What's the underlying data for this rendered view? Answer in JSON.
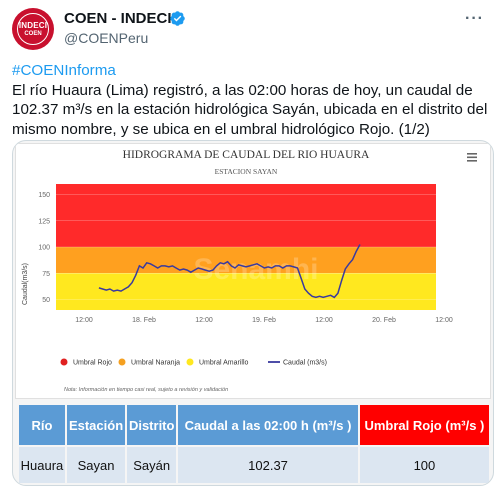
{
  "account": {
    "name": "COEN - INDECI",
    "handle": "@COENPeru",
    "avatar_text_top": "INDECI",
    "avatar_text_bottom": "COEN"
  },
  "tweet": {
    "hashtag": "#COENInforma",
    "body": "El río Huaura (Lima) registró, a las 02:00 horas de hoy, un caudal de 102.37 m³/s en la estación hidrológica Sayán, ubicada en el distrito del mismo nombre, y se ubica en el umbral hidrológico Rojo. (1/2)"
  },
  "chart_data": {
    "type": "line",
    "title": "HIDROGRAMA DE CAUDAL DEL RIO HUAURA",
    "subtitle": "ESTACION SAYAN",
    "ylabel": "Caudal(m3/s)",
    "ylim": [
      40,
      160
    ],
    "yticks": [
      50,
      75,
      100,
      125,
      150
    ],
    "xticks": [
      "12:00",
      "18. Feb",
      "12:00",
      "19. Feb",
      "12:00",
      "20. Feb",
      "12:00"
    ],
    "bands": [
      {
        "name": "Umbral Rojo",
        "from": 100,
        "to": 160,
        "color": "#ff2a2a"
      },
      {
        "name": "Umbral Naranja",
        "from": 75,
        "to": 100,
        "color": "#ffa01f"
      },
      {
        "name": "Umbral Amarillo",
        "from": 40,
        "to": 75,
        "color": "#ffe81f"
      }
    ],
    "series": [
      {
        "name": "Caudal (m3/s)",
        "color": "#3a3a9e",
        "x": [
          0,
          0.03,
          0.06,
          0.09,
          0.12,
          0.15,
          0.18,
          0.21,
          0.24,
          0.27,
          0.3,
          0.33,
          0.36,
          0.39,
          0.42,
          0.45,
          0.48,
          0.51,
          0.54,
          0.57,
          0.6,
          0.63,
          0.66,
          0.69,
          0.72,
          0.75,
          0.78,
          0.81,
          0.84,
          0.87,
          0.9,
          0.93,
          0.96,
          0.99,
          1.02,
          1.05,
          1.08,
          1.11,
          1.14,
          1.17,
          1.2,
          1.23,
          1.26,
          1.29,
          1.32,
          1.35,
          1.38,
          1.41,
          1.44,
          1.47,
          1.5,
          1.53,
          1.56,
          1.59,
          1.62,
          1.65,
          1.68,
          1.71,
          1.74,
          1.77,
          1.8,
          1.83,
          1.86,
          1.89,
          1.92,
          1.95,
          1.98,
          2.01,
          2.04,
          2.07,
          2.1,
          2.13
        ],
        "values": [
          61,
          60,
          59,
          60,
          58,
          59,
          58,
          60,
          62,
          66,
          73,
          82,
          80,
          85,
          84,
          82,
          80,
          82,
          82,
          81,
          82,
          80,
          78,
          79,
          78,
          76,
          78,
          80,
          79,
          78,
          77,
          78,
          82,
          85,
          84,
          86,
          82,
          80,
          83,
          82,
          81,
          82,
          83,
          84,
          82,
          80,
          81,
          80,
          82,
          82,
          80,
          82,
          82,
          81,
          80,
          70,
          60,
          56,
          53,
          52,
          53,
          52,
          53,
          54,
          52,
          56,
          68,
          79,
          84,
          88,
          96,
          102.37
        ]
      }
    ],
    "legend": [
      "Umbral Rojo",
      "Umbral Naranja",
      "Umbral Amarillo",
      "Caudal (m3/s)"
    ],
    "legend_colors": [
      "#e02020",
      "#f5a020",
      "#ffe81f",
      "#3a3a9e"
    ],
    "note": "Nota: Información en tiempo casi real, sujeto a revisión y validación",
    "watermark": "Senamhi"
  },
  "table": {
    "headers": [
      "Río",
      "Estación",
      "Distrito",
      "Caudal a las 02:00 h (m³/s )",
      "Umbral Rojo (m³/s )"
    ],
    "row": [
      "Huaura",
      "Sayan",
      "Sayán",
      "102.37",
      "100"
    ]
  },
  "colors": {
    "brand": "#c8102e",
    "link": "#1d9bf0",
    "table_header": "#5b9bd5",
    "table_alert": "#ff0000"
  },
  "icons": {
    "verified": "verified-badge-icon",
    "more": "more-options-icon",
    "menu": "hamburger-menu-icon"
  }
}
